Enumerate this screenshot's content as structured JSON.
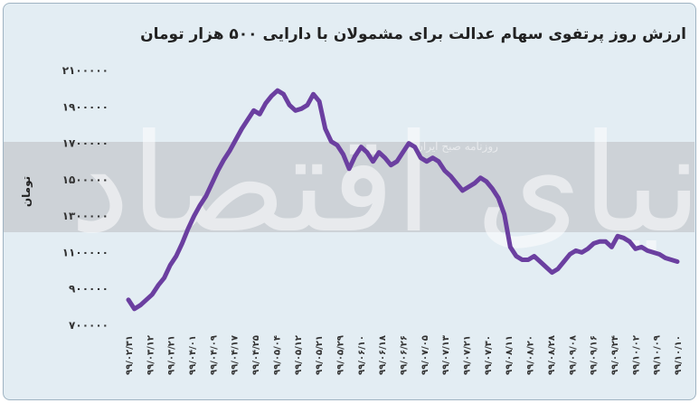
{
  "chart_data": {
    "type": "line",
    "title": "ارزش روز پرتفوی سهام عدالت برای مشمولان با دارایی ۵۰۰ هزار تومان",
    "ylabel": "تومان",
    "xlabel": "",
    "ylim": [
      700000,
      2100000
    ],
    "yticks": [
      700000,
      900000,
      1100000,
      1300000,
      1500000,
      1700000,
      1900000,
      2100000
    ],
    "ytick_labels": [
      "۷۰۰۰۰۰",
      "۹۰۰۰۰۰",
      "۱۱۰۰۰۰۰",
      "۱۳۰۰۰۰۰",
      "۱۵۰۰۰۰۰",
      "۱۷۰۰۰۰۰",
      "۱۹۰۰۰۰۰",
      "۲۱۰۰۰۰۰"
    ],
    "xtick_labels": [
      "۹۹/۰۲/۳۱",
      "۹۹/۰۳/۱۲",
      "۹۹/۰۳/۲۱",
      "۹۹/۰۴/۰۱",
      "۹۹/۰۴/۰۹",
      "۹۹/۰۴/۱۷",
      "۹۹/۰۴/۲۵",
      "۹۹/۰۵/۰۴",
      "۹۹/۰۵/۱۲",
      "۹۹/۰۵/۲۱",
      "۹۹/۰۵/۲۹",
      "۹۹/۰۶/۱۰",
      "۹۹/۰۶/۱۸",
      "۹۹/۰۶/۲۶",
      "۹۹/۰۷/۰۵",
      "۹۹/۰۷/۱۳",
      "۹۹/۰۷/۲۱",
      "۹۹/۰۷/۳۰",
      "۹۹/۰۸/۱۱",
      "۹۹/۰۸/۲۰",
      "۹۹/۰۸/۲۸",
      "۹۹/۰۹/۰۸",
      "۹۹/۰۹/۱۶",
      "۹۹/۰۹/۲۴",
      "۹۹/۱۰/۰۲",
      "۹۹/۱۰/۰۹",
      "۹۹/۱۰/۱۰"
    ],
    "grid": false,
    "legend": "none",
    "line_color": "#6b3fa0",
    "values": [
      840000,
      790000,
      810000,
      840000,
      870000,
      920000,
      960000,
      1030000,
      1080000,
      1150000,
      1230000,
      1300000,
      1360000,
      1410000,
      1480000,
      1550000,
      1610000,
      1660000,
      1720000,
      1780000,
      1830000,
      1880000,
      1860000,
      1920000,
      1960000,
      1990000,
      1970000,
      1910000,
      1880000,
      1890000,
      1910000,
      1970000,
      1930000,
      1780000,
      1710000,
      1690000,
      1640000,
      1560000,
      1630000,
      1680000,
      1650000,
      1600000,
      1650000,
      1620000,
      1580000,
      1600000,
      1650000,
      1700000,
      1680000,
      1620000,
      1600000,
      1620000,
      1600000,
      1550000,
      1520000,
      1480000,
      1440000,
      1460000,
      1480000,
      1510000,
      1490000,
      1450000,
      1400000,
      1310000,
      1130000,
      1080000,
      1060000,
      1060000,
      1080000,
      1050000,
      1020000,
      990000,
      1010000,
      1050000,
      1090000,
      1110000,
      1100000,
      1120000,
      1150000,
      1160000,
      1160000,
      1130000,
      1190000,
      1180000,
      1160000,
      1120000,
      1130000,
      1110000,
      1100000,
      1090000,
      1070000,
      1060000,
      1050000
    ]
  },
  "watermark": {
    "large": "دنیای اقتصاد",
    "small": "روزنامه صبح ایران"
  },
  "colors": {
    "background": "#e3edf3",
    "band": "#c9cdd1",
    "line": "#6b3fa0"
  }
}
